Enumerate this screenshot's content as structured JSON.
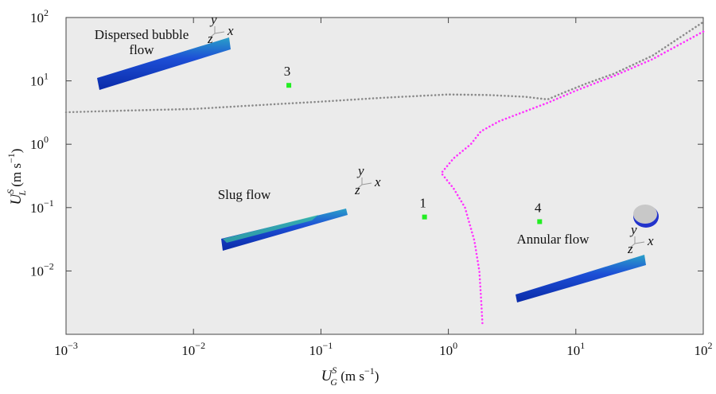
{
  "chart_data": {
    "type": "scatter",
    "xlabel": {
      "symbol": "U",
      "sup": "S",
      "sub": "G",
      "unit": " (m s",
      "unit_exp": "−1",
      "close": ")"
    },
    "ylabel": {
      "symbol": "U",
      "sup": "S",
      "sub": "L",
      "unit": " (m s",
      "unit_exp": "−1",
      "close": ")"
    },
    "log_x": true,
    "log_y": true,
    "xlim": [
      0.001,
      100
    ],
    "ylim": [
      0.001,
      100
    ],
    "xticks": [
      {
        "value": 0.001,
        "label": "10",
        "exp": "−3"
      },
      {
        "value": 0.01,
        "label": "10",
        "exp": "−2"
      },
      {
        "value": 0.1,
        "label": "10",
        "exp": "−1"
      },
      {
        "value": 1,
        "label": "10",
        "exp": "0"
      },
      {
        "value": 10,
        "label": "10",
        "exp": "1"
      },
      {
        "value": 100,
        "label": "10",
        "exp": "2"
      }
    ],
    "yticks": [
      {
        "value": 0.01,
        "label": "10",
        "exp": "−2"
      },
      {
        "value": 0.1,
        "label": "10",
        "exp": "−1"
      },
      {
        "value": 1,
        "label": "10",
        "exp": "0"
      },
      {
        "value": 10,
        "label": "10",
        "exp": "1"
      },
      {
        "value": 100,
        "label": "10",
        "exp": "2"
      }
    ],
    "background": "#ebebeb",
    "series": [
      {
        "color": "#8a8a8a",
        "style": "dotted",
        "x": [
          0.001,
          0.003,
          0.01,
          0.03,
          0.1,
          0.3,
          1,
          2,
          4,
          6,
          8,
          12,
          20,
          40,
          100
        ],
        "values": [
          3.2,
          3.4,
          3.6,
          4.1,
          4.7,
          5.4,
          6.1,
          6.0,
          5.6,
          5.1,
          6.5,
          9,
          13,
          25,
          85
        ]
      },
      {
        "color": "#ff33ff",
        "style": "dotted",
        "x": [
          1.85,
          1.8,
          1.75,
          1.6,
          1.35,
          1.1,
          0.88,
          1.1,
          1.5,
          1.8,
          2.5,
          4,
          6,
          10,
          20,
          40,
          100
        ],
        "values": [
          0.0015,
          0.004,
          0.01,
          0.03,
          0.1,
          0.2,
          0.35,
          0.6,
          1.0,
          1.6,
          2.3,
          3.3,
          4.5,
          7,
          12,
          22,
          60
        ]
      }
    ],
    "points": {
      "color": "#22ee22",
      "x": [
        0.056,
        0.65,
        5.2
      ],
      "values": [
        8.5,
        0.071,
        0.06
      ],
      "labels": [
        "3",
        "1",
        "4"
      ]
    },
    "annotations": [
      [
        "Dispersed bubble",
        "flow"
      ],
      [
        "Slug flow"
      ],
      [
        "Annular flow"
      ]
    ],
    "inset_axis_labels": [
      "y",
      "z",
      "x"
    ]
  }
}
